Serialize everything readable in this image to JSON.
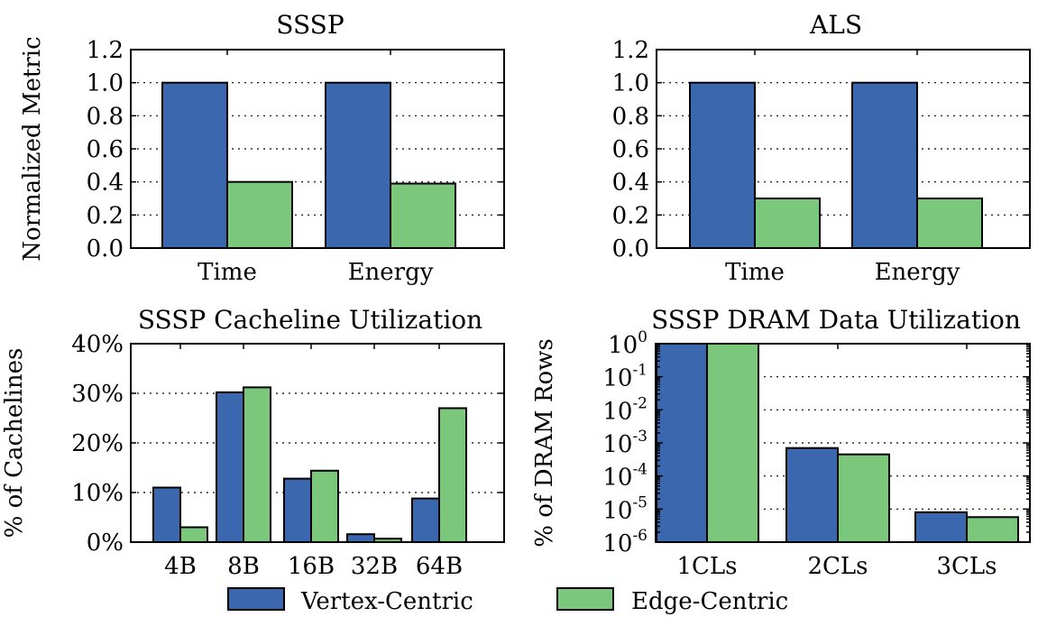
{
  "colors": {
    "vertex": "#3A67AE",
    "edge": "#7BC77B"
  },
  "legend": [
    {
      "label": "Vertex-Centric",
      "color": "#3A67AE"
    },
    {
      "label": "Edge-Centric",
      "color": "#7BC77B"
    }
  ],
  "chart_data": [
    {
      "type": "bar",
      "title": "SSSP",
      "ylabel": "Normalized Metric",
      "categories": [
        "Time",
        "Energy"
      ],
      "yticks": [
        "0.0",
        "0.2",
        "0.4",
        "0.6",
        "0.8",
        "1.0",
        "1.2"
      ],
      "ylim": [
        0,
        1.2
      ],
      "grid": true,
      "series": [
        {
          "name": "Vertex-Centric",
          "values": [
            1.0,
            1.0
          ]
        },
        {
          "name": "Edge-Centric",
          "values": [
            0.4,
            0.39
          ]
        }
      ]
    },
    {
      "type": "bar",
      "title": "ALS",
      "ylabel": "",
      "categories": [
        "Time",
        "Energy"
      ],
      "yticks": [
        "0.0",
        "0.2",
        "0.4",
        "0.6",
        "0.8",
        "1.0",
        "1.2"
      ],
      "ylim": [
        0,
        1.2
      ],
      "grid": true,
      "series": [
        {
          "name": "Vertex-Centric",
          "values": [
            1.0,
            1.0
          ]
        },
        {
          "name": "Edge-Centric",
          "values": [
            0.3,
            0.3
          ]
        }
      ]
    },
    {
      "type": "bar",
      "title": "SSSP Cacheline Utilization",
      "ylabel": "% of Cachelines",
      "categories": [
        "4B",
        "8B",
        "16B",
        "32B",
        "64B"
      ],
      "yticks": [
        "0%",
        "10%",
        "20%",
        "30%",
        "40%"
      ],
      "ylim": [
        0,
        40
      ],
      "grid": true,
      "series": [
        {
          "name": "Vertex-Centric",
          "values": [
            11.0,
            30.2,
            12.8,
            1.6,
            8.8
          ]
        },
        {
          "name": "Edge-Centric",
          "values": [
            3.0,
            31.2,
            14.4,
            0.7,
            27.0
          ]
        }
      ]
    },
    {
      "type": "bar",
      "title": "SSSP DRAM Data Utilization",
      "ylabel": "% of DRAM Rows",
      "categories": [
        "1CLs",
        "2CLs",
        "3CLs"
      ],
      "yscale": "log",
      "ytick_base": "10",
      "ytick_exponents": [
        "0",
        "-1",
        "-2",
        "-3",
        "-4",
        "-5",
        "-6"
      ],
      "ylim": [
        1e-06,
        1
      ],
      "grid": true,
      "series": [
        {
          "name": "Vertex-Centric",
          "values": [
            1.0,
            0.0007,
            8e-06
          ]
        },
        {
          "name": "Edge-Centric",
          "values": [
            1.0,
            0.00045,
            5.7e-06
          ]
        }
      ]
    }
  ]
}
